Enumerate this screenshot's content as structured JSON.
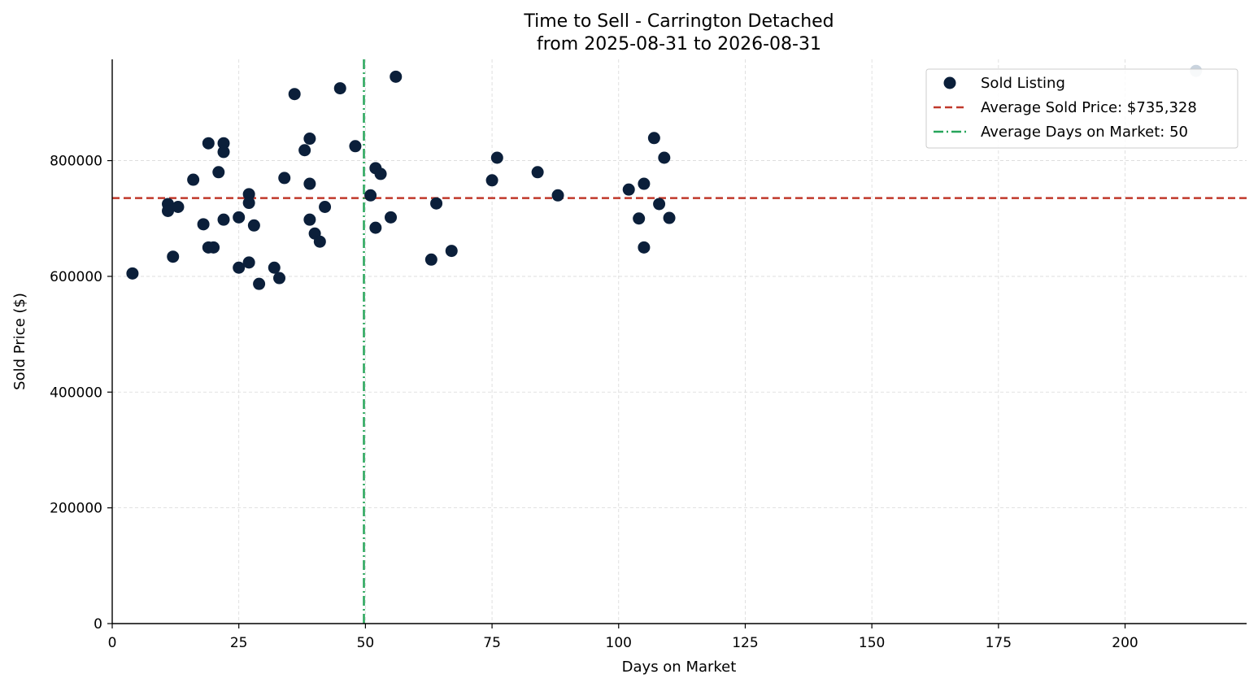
{
  "chart_data": {
    "type": "scatter",
    "title": "Time to Sell - Carrington Detached",
    "subtitle": "from 2025-08-31 to 2026-08-31",
    "xlabel": "Days on Market",
    "ylabel": "Sold Price ($)",
    "xlim": [
      0,
      224
    ],
    "ylim": [
      0,
      975000
    ],
    "xticks": [
      0,
      25,
      50,
      75,
      100,
      125,
      150,
      175,
      200
    ],
    "yticks": [
      0,
      200000,
      400000,
      600000,
      800000
    ],
    "grid": true,
    "legend_position": "top-right",
    "colors": {
      "points": "#0b1f3a",
      "outlier_point": "#c9d3de",
      "avg_price_line": "#c0392b",
      "avg_days_line": "#27a55a",
      "grid": "#d9d9d9"
    },
    "series": [
      {
        "name": "Sold Listing",
        "points": [
          [
            4,
            605000
          ],
          [
            11,
            725000
          ],
          [
            11,
            713000
          ],
          [
            12,
            634000
          ],
          [
            13,
            720000
          ],
          [
            16,
            767000
          ],
          [
            18,
            690000
          ],
          [
            19,
            830000
          ],
          [
            19,
            650000
          ],
          [
            20,
            650000
          ],
          [
            21,
            780000
          ],
          [
            22,
            830000
          ],
          [
            22,
            815000
          ],
          [
            22,
            698000
          ],
          [
            25,
            702000
          ],
          [
            25,
            615000
          ],
          [
            27,
            742000
          ],
          [
            27,
            727000
          ],
          [
            27,
            624000
          ],
          [
            28,
            688000
          ],
          [
            29,
            587000
          ],
          [
            32,
            615000
          ],
          [
            33,
            597000
          ],
          [
            34,
            770000
          ],
          [
            36,
            915000
          ],
          [
            38,
            818000
          ],
          [
            39,
            838000
          ],
          [
            39,
            760000
          ],
          [
            39,
            698000
          ],
          [
            40,
            674000
          ],
          [
            41,
            660000
          ],
          [
            42,
            720000
          ],
          [
            45,
            925000
          ],
          [
            48,
            825000
          ],
          [
            51,
            740000
          ],
          [
            52,
            787000
          ],
          [
            52,
            684000
          ],
          [
            53,
            777000
          ],
          [
            55,
            702000
          ],
          [
            56,
            945000
          ],
          [
            63,
            629000
          ],
          [
            64,
            726000
          ],
          [
            67,
            644000
          ],
          [
            75,
            766000
          ],
          [
            76,
            805000
          ],
          [
            84,
            780000
          ],
          [
            88,
            740000
          ],
          [
            102,
            750000
          ],
          [
            104,
            700000
          ],
          [
            105,
            760000
          ],
          [
            105,
            650000
          ],
          [
            107,
            839000
          ],
          [
            108,
            725000
          ],
          [
            109,
            805000
          ],
          [
            110,
            701000
          ],
          [
            214,
            955000
          ]
        ]
      }
    ],
    "outlier_index": 55,
    "avg_sold_price": 735328,
    "avg_days_on_market": 49.7,
    "legend": {
      "sold_listing": "Sold Listing",
      "avg_price": "Average Sold Price: $735,328",
      "avg_days": "Average Days on Market: 50"
    }
  }
}
